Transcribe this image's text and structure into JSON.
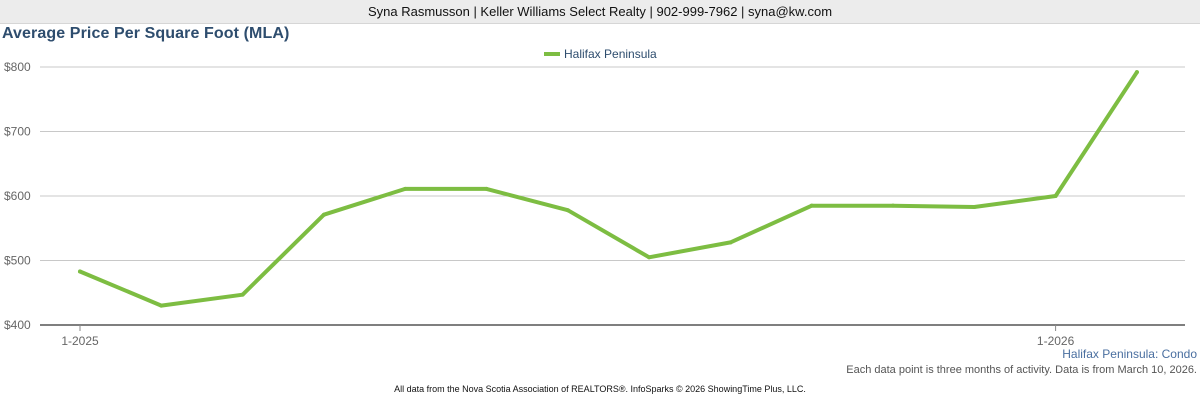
{
  "header": {
    "contact": "Syna Rasmusson | Keller Williams Select Realty | 902-999-7962 | syna@kw.com"
  },
  "chart_data": {
    "type": "line",
    "title": "Average Price Per Square Foot (MLA)",
    "subtitle": "Halifax Peninsula: Condo",
    "x": [
      "1-2025",
      "2-2025",
      "3-2025",
      "4-2025",
      "5-2025",
      "6-2025",
      "7-2025",
      "8-2025",
      "9-2025",
      "10-2025",
      "11-2025",
      "12-2025",
      "1-2026",
      "2-2026"
    ],
    "x_tick_labels": [
      "1-2025",
      "1-2026"
    ],
    "series": [
      {
        "name": "Halifax Peninsula",
        "color": "#7dbd42",
        "values": [
          483,
          430,
          447,
          571,
          611,
          611,
          578,
          505,
          528,
          585,
          585,
          583,
          600,
          792
        ]
      }
    ],
    "ylim": [
      400,
      800
    ],
    "y_ticks": [
      400,
      500,
      600,
      700,
      800
    ],
    "y_tick_labels": [
      "$400",
      "$500",
      "$600",
      "$700",
      "$800"
    ],
    "grid": true,
    "legend": "top-center"
  },
  "notes": {
    "activity": "Each data point is three months of activity. Data is from March 10, 2026."
  },
  "footer": {
    "source": "All data from the Nova Scotia Association of REALTORS®. InfoSparks © 2026 ShowingTime Plus, LLC."
  }
}
